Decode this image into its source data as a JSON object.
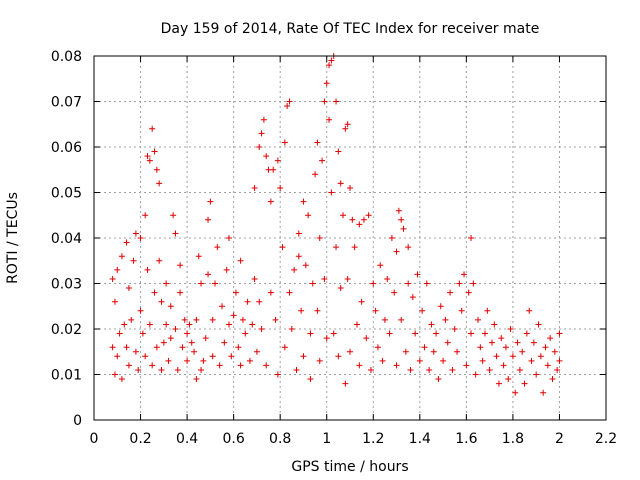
{
  "chart_data": {
    "type": "scatter",
    "title": "Day 159 of 2014, Rate Of TEC Index for receiver mate",
    "xlabel": "GPS time / hours",
    "ylabel": "ROTI / TECUs",
    "xlim": [
      0,
      2.2
    ],
    "ylim": [
      0,
      0.08
    ],
    "xticks": [
      "0",
      "0.2",
      "0.4",
      "0.6",
      "0.8",
      "1",
      "1.2",
      "1.4",
      "1.6",
      "1.8",
      "2",
      "2.2"
    ],
    "yticks": [
      "0",
      "0.01",
      "0.02",
      "0.03",
      "0.04",
      "0.05",
      "0.06",
      "0.07",
      "0.08"
    ],
    "grid": true,
    "marker": "+",
    "color": "#e00000",
    "series": [
      {
        "name": "ROTI",
        "points": [
          [
            0.08,
            0.016
          ],
          [
            0.08,
            0.031
          ],
          [
            0.09,
            0.01
          ],
          [
            0.09,
            0.026
          ],
          [
            0.1,
            0.014
          ],
          [
            0.1,
            0.033
          ],
          [
            0.11,
            0.019
          ],
          [
            0.12,
            0.009
          ],
          [
            0.12,
            0.036
          ],
          [
            0.13,
            0.021
          ],
          [
            0.14,
            0.016
          ],
          [
            0.14,
            0.039
          ],
          [
            0.15,
            0.012
          ],
          [
            0.15,
            0.029
          ],
          [
            0.16,
            0.022
          ],
          [
            0.17,
            0.035
          ],
          [
            0.18,
            0.015
          ],
          [
            0.18,
            0.041
          ],
          [
            0.19,
            0.011
          ],
          [
            0.2,
            0.024
          ],
          [
            0.2,
            0.04
          ],
          [
            0.21,
            0.019
          ],
          [
            0.22,
            0.045
          ],
          [
            0.22,
            0.014
          ],
          [
            0.23,
            0.058
          ],
          [
            0.23,
            0.033
          ],
          [
            0.24,
            0.057
          ],
          [
            0.24,
            0.021
          ],
          [
            0.25,
            0.064
          ],
          [
            0.25,
            0.012
          ],
          [
            0.26,
            0.059
          ],
          [
            0.26,
            0.028
          ],
          [
            0.27,
            0.055
          ],
          [
            0.27,
            0.016
          ],
          [
            0.28,
            0.052
          ],
          [
            0.28,
            0.035
          ],
          [
            0.29,
            0.026
          ],
          [
            0.29,
            0.011
          ],
          [
            0.3,
            0.017
          ],
          [
            0.31,
            0.021
          ],
          [
            0.31,
            0.03
          ],
          [
            0.32,
            0.013
          ],
          [
            0.33,
            0.025
          ],
          [
            0.33,
            0.018
          ],
          [
            0.34,
            0.045
          ],
          [
            0.35,
            0.041
          ],
          [
            0.35,
            0.02
          ],
          [
            0.36,
            0.011
          ],
          [
            0.37,
            0.028
          ],
          [
            0.37,
            0.034
          ],
          [
            0.38,
            0.016
          ],
          [
            0.39,
            0.022
          ],
          [
            0.4,
            0.019
          ],
          [
            0.4,
            0.013
          ],
          [
            0.41,
            0.021
          ],
          [
            0.42,
            0.017
          ],
          [
            0.43,
            0.015
          ],
          [
            0.44,
            0.009
          ],
          [
            0.44,
            0.022
          ],
          [
            0.45,
            0.036
          ],
          [
            0.46,
            0.011
          ],
          [
            0.46,
            0.03
          ],
          [
            0.47,
            0.013
          ],
          [
            0.48,
            0.018
          ],
          [
            0.49,
            0.032
          ],
          [
            0.49,
            0.044
          ],
          [
            0.5,
            0.048
          ],
          [
            0.51,
            0.022
          ],
          [
            0.51,
            0.014
          ],
          [
            0.52,
            0.03
          ],
          [
            0.53,
            0.038
          ],
          [
            0.54,
            0.012
          ],
          [
            0.55,
            0.025
          ],
          [
            0.56,
            0.017
          ],
          [
            0.57,
            0.033
          ],
          [
            0.58,
            0.021
          ],
          [
            0.58,
            0.04
          ],
          [
            0.59,
            0.014
          ],
          [
            0.6,
            0.023
          ],
          [
            0.61,
            0.028
          ],
          [
            0.62,
            0.016
          ],
          [
            0.63,
            0.035
          ],
          [
            0.63,
            0.012
          ],
          [
            0.64,
            0.022
          ],
          [
            0.65,
            0.019
          ],
          [
            0.66,
            0.026
          ],
          [
            0.67,
            0.013
          ],
          [
            0.68,
            0.021
          ],
          [
            0.69,
            0.031
          ],
          [
            0.69,
            0.051
          ],
          [
            0.7,
            0.015
          ],
          [
            0.71,
            0.06
          ],
          [
            0.71,
            0.026
          ],
          [
            0.72,
            0.063
          ],
          [
            0.72,
            0.02
          ],
          [
            0.73,
            0.066
          ],
          [
            0.74,
            0.058
          ],
          [
            0.74,
            0.012
          ],
          [
            0.75,
            0.055
          ],
          [
            0.76,
            0.048
          ],
          [
            0.76,
            0.028
          ],
          [
            0.77,
            0.055
          ],
          [
            0.78,
            0.022
          ],
          [
            0.79,
            0.057
          ],
          [
            0.79,
            0.01
          ],
          [
            0.8,
            0.051
          ],
          [
            0.81,
            0.038
          ],
          [
            0.82,
            0.061
          ],
          [
            0.82,
            0.016
          ],
          [
            0.83,
            0.069
          ],
          [
            0.84,
            0.07
          ],
          [
            0.84,
            0.028
          ],
          [
            0.85,
            0.02
          ],
          [
            0.86,
            0.033
          ],
          [
            0.87,
            0.011
          ],
          [
            0.88,
            0.041
          ],
          [
            0.88,
            0.036
          ],
          [
            0.89,
            0.024
          ],
          [
            0.9,
            0.048
          ],
          [
            0.9,
            0.014
          ],
          [
            0.91,
            0.034
          ],
          [
            0.92,
            0.045
          ],
          [
            0.93,
            0.019
          ],
          [
            0.93,
            0.009
          ],
          [
            0.94,
            0.03
          ],
          [
            0.95,
            0.054
          ],
          [
            0.96,
            0.061
          ],
          [
            0.96,
            0.024
          ],
          [
            0.97,
            0.04
          ],
          [
            0.97,
            0.013
          ],
          [
            0.98,
            0.057
          ],
          [
            0.99,
            0.07
          ],
          [
            0.99,
            0.031
          ],
          [
            1.0,
            0.074
          ],
          [
            1.0,
            0.018
          ],
          [
            1.01,
            0.078
          ],
          [
            1.01,
            0.066
          ],
          [
            1.02,
            0.079
          ],
          [
            1.02,
            0.05
          ],
          [
            1.03,
            0.08
          ],
          [
            1.03,
            0.019
          ],
          [
            1.04,
            0.07
          ],
          [
            1.04,
            0.038
          ],
          [
            1.05,
            0.059
          ],
          [
            1.05,
            0.014
          ],
          [
            1.06,
            0.052
          ],
          [
            1.06,
            0.029
          ],
          [
            1.07,
            0.045
          ],
          [
            1.08,
            0.064
          ],
          [
            1.08,
            0.008
          ],
          [
            1.09,
            0.065
          ],
          [
            1.09,
            0.031
          ],
          [
            1.1,
            0.051
          ],
          [
            1.1,
            0.015
          ],
          [
            1.11,
            0.044
          ],
          [
            1.12,
            0.038
          ],
          [
            1.13,
            0.021
          ],
          [
            1.14,
            0.043
          ],
          [
            1.14,
            0.012
          ],
          [
            1.15,
            0.026
          ],
          [
            1.16,
            0.044
          ],
          [
            1.17,
            0.018
          ],
          [
            1.18,
            0.045
          ],
          [
            1.19,
            0.011
          ],
          [
            1.2,
            0.03
          ],
          [
            1.21,
            0.024
          ],
          [
            1.22,
            0.016
          ],
          [
            1.23,
            0.034
          ],
          [
            1.24,
            0.013
          ],
          [
            1.25,
            0.022
          ],
          [
            1.26,
            0.031
          ],
          [
            1.27,
            0.019
          ],
          [
            1.28,
            0.04
          ],
          [
            1.29,
            0.028
          ],
          [
            1.3,
            0.037
          ],
          [
            1.3,
            0.012
          ],
          [
            1.31,
            0.046
          ],
          [
            1.32,
            0.044
          ],
          [
            1.32,
            0.022
          ],
          [
            1.33,
            0.042
          ],
          [
            1.34,
            0.015
          ],
          [
            1.35,
            0.038
          ],
          [
            1.35,
            0.03
          ],
          [
            1.36,
            0.011
          ],
          [
            1.37,
            0.027
          ],
          [
            1.38,
            0.019
          ],
          [
            1.39,
            0.032
          ],
          [
            1.4,
            0.013
          ],
          [
            1.41,
            0.024
          ],
          [
            1.42,
            0.016
          ],
          [
            1.43,
            0.03
          ],
          [
            1.44,
            0.011
          ],
          [
            1.45,
            0.021
          ],
          [
            1.46,
            0.015
          ],
          [
            1.47,
            0.019
          ],
          [
            1.48,
            0.009
          ],
          [
            1.49,
            0.025
          ],
          [
            1.5,
            0.013
          ],
          [
            1.51,
            0.022
          ],
          [
            1.52,
            0.017
          ],
          [
            1.53,
            0.028
          ],
          [
            1.54,
            0.011
          ],
          [
            1.55,
            0.02
          ],
          [
            1.56,
            0.015
          ],
          [
            1.57,
            0.03
          ],
          [
            1.58,
            0.024
          ],
          [
            1.59,
            0.032
          ],
          [
            1.6,
            0.012
          ],
          [
            1.61,
            0.028
          ],
          [
            1.62,
            0.04
          ],
          [
            1.62,
            0.019
          ],
          [
            1.63,
            0.03
          ],
          [
            1.64,
            0.01
          ],
          [
            1.65,
            0.022
          ],
          [
            1.66,
            0.016
          ],
          [
            1.67,
            0.013
          ],
          [
            1.68,
            0.019
          ],
          [
            1.69,
            0.024
          ],
          [
            1.7,
            0.011
          ],
          [
            1.71,
            0.017
          ],
          [
            1.72,
            0.021
          ],
          [
            1.73,
            0.014
          ],
          [
            1.74,
            0.008
          ],
          [
            1.75,
            0.018
          ],
          [
            1.76,
            0.012
          ],
          [
            1.77,
            0.016
          ],
          [
            1.78,
            0.009
          ],
          [
            1.79,
            0.02
          ],
          [
            1.8,
            0.014
          ],
          [
            1.81,
            0.006
          ],
          [
            1.82,
            0.017
          ],
          [
            1.83,
            0.011
          ],
          [
            1.84,
            0.015
          ],
          [
            1.85,
            0.008
          ],
          [
            1.86,
            0.019
          ],
          [
            1.87,
            0.024
          ],
          [
            1.88,
            0.013
          ],
          [
            1.89,
            0.017
          ],
          [
            1.9,
            0.01
          ],
          [
            1.91,
            0.021
          ],
          [
            1.92,
            0.014
          ],
          [
            1.93,
            0.006
          ],
          [
            1.94,
            0.016
          ],
          [
            1.95,
            0.012
          ],
          [
            1.96,
            0.018
          ],
          [
            1.97,
            0.009
          ],
          [
            1.98,
            0.015
          ],
          [
            1.99,
            0.011
          ],
          [
            2.0,
            0.019
          ],
          [
            2.0,
            0.013
          ]
        ]
      }
    ]
  }
}
